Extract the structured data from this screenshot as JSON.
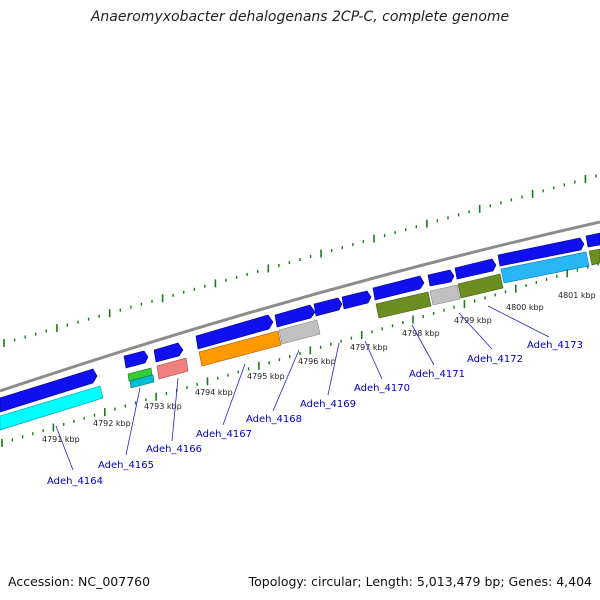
{
  "title": "Anaeromyxobacter dehalogenans 2CP-C, complete genome",
  "footer": {
    "accession": "Accession: NC_007760",
    "topology": "Topology: circular; Length: 5,013,479 bp; Genes: 4,404"
  },
  "colors": {
    "backbone": "#8c8c8c",
    "tick": "#1a7a1a",
    "cds": "#1010ee",
    "cds_alt": "#3333cc",
    "rna": "#00ffff",
    "cog_orange": "#ff9900",
    "cog_gray": "#c0c0c0",
    "cog_olive": "#6b8e23",
    "cog_teal": "#00bcd4",
    "cog_pink": "#f08080",
    "cog_green": "#33cc33",
    "label": "#0000bb"
  },
  "kbp_labels": [
    "4791 kbp",
    "4792 kbp",
    "4793 kbp",
    "4794 kbp",
    "4795 kbp",
    "4796 kbp",
    "4797 kbp",
    "4798 kbp",
    "4799 kbp",
    "4800 kbp",
    "4801 kbp"
  ],
  "gene_labels": [
    "Adeh_4164",
    "Adeh_4165",
    "Adeh_4166",
    "Adeh_4167",
    "Adeh_4168",
    "Adeh_4169",
    "Adeh_4170",
    "Adeh_4171",
    "Adeh_4172",
    "Adeh_4173"
  ]
}
